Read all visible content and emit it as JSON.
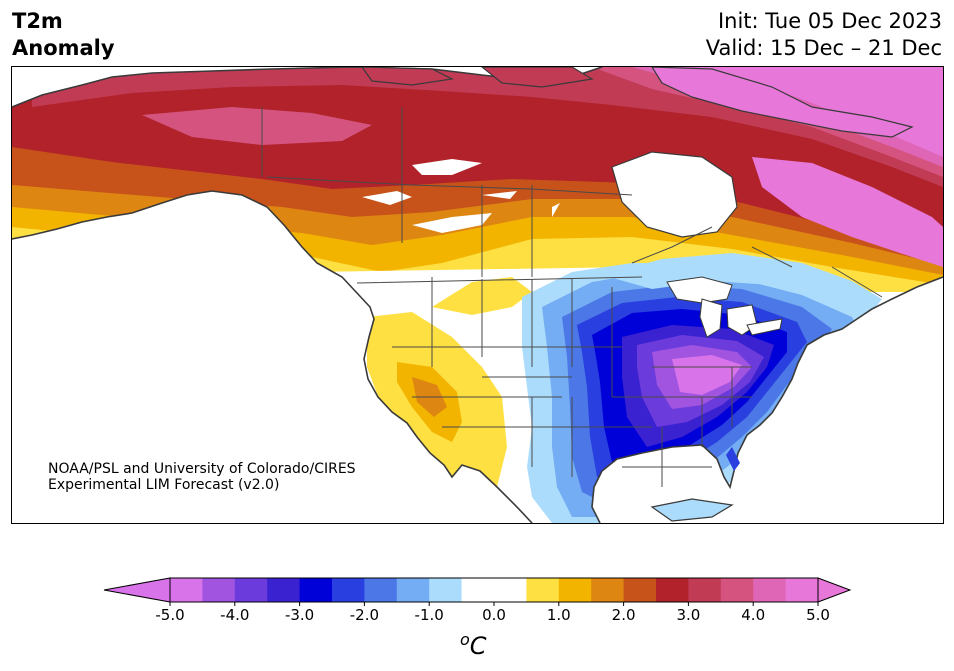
{
  "title": {
    "left_line1": "T2m",
    "left_line2": "Anomaly",
    "right_line1": "Init: Tue 05 Dec 2023",
    "right_line2": "Valid: 15 Dec – 21 Dec"
  },
  "credit": {
    "line1": "NOAA/PSL and University of Colorado/CIRES",
    "line2": "Experimental LIM Forecast (v2.0)"
  },
  "colorbar": {
    "ticks": [
      "-5.0",
      "-4.0",
      "-3.0",
      "-2.0",
      "-1.0",
      "0.0",
      "1.0",
      "2.0",
      "3.0",
      "4.0",
      "5.0"
    ],
    "unit_sup": "o",
    "unit_main": "C",
    "levels": [
      {
        "range": "-5.0 to -4.5",
        "color": "#d873ea"
      },
      {
        "range": "-4.5 to -4.0",
        "color": "#a154e0"
      },
      {
        "range": "-4.0 to -3.5",
        "color": "#6c3bdc"
      },
      {
        "range": "-3.5 to -3.0",
        "color": "#3b22d0"
      },
      {
        "range": "-3.0 to -2.5",
        "color": "#0000d8"
      },
      {
        "range": "-2.5 to -2.0",
        "color": "#2a3fdf"
      },
      {
        "range": "-2.0 to -1.5",
        "color": "#4b78e6"
      },
      {
        "range": "-1.5 to -1.0",
        "color": "#74adf3"
      },
      {
        "range": "-1.0 to -0.5",
        "color": "#acdcfb"
      },
      {
        "range": "-0.5 to 0.0",
        "color": "#ffffff"
      },
      {
        "range": "0.0 to 0.5",
        "color": "#ffffff"
      },
      {
        "range": "0.5 to 1.0",
        "color": "#fee042"
      },
      {
        "range": "1.0 to 1.5",
        "color": "#f3b400"
      },
      {
        "range": "1.5 to 2.0",
        "color": "#de8612"
      },
      {
        "range": "2.0 to 2.5",
        "color": "#c7531b"
      },
      {
        "range": "2.5 to 3.0",
        "color": "#b1222a"
      },
      {
        "range": "3.0 to 3.5",
        "color": "#c23b55"
      },
      {
        "range": "3.5 to 4.0",
        "color": "#d4547f"
      },
      {
        "range": "4.0 to 4.5",
        "color": "#df65b6"
      },
      {
        "range": "4.5 to 5.0",
        "color": "#e777d9"
      }
    ],
    "under_color": "#d873ea",
    "over_color": "#e777d9"
  },
  "map": {
    "region": "North America",
    "field": "2 m temperature anomaly (°C)",
    "features": {
      "warm_max": "northern Canada / Alaska (3.5–5.0)",
      "cold_max": "Ohio Valley / Appalachians (-4.0 to -5.0)"
    }
  }
}
